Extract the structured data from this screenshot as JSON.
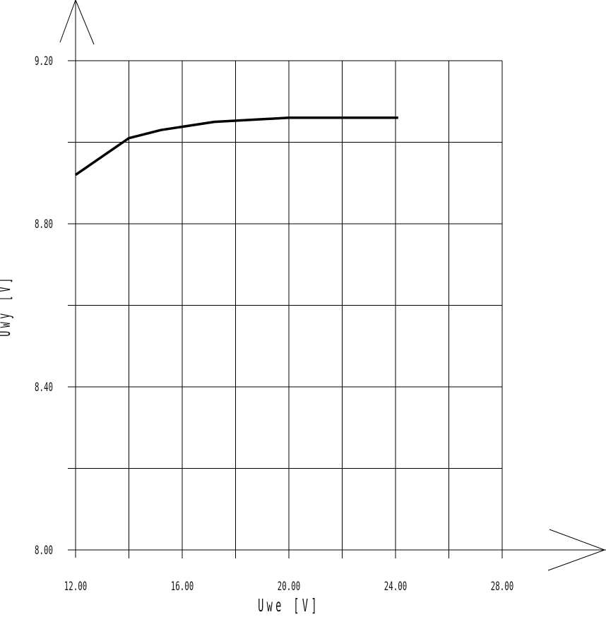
{
  "chart_data": {
    "type": "line",
    "xlabel": "Uwe [V]",
    "ylabel": "Uwy [V]",
    "xlim": [
      12,
      28
    ],
    "ylim": [
      8.0,
      9.2
    ],
    "x_ticks": [
      "12.00",
      "16.00",
      "20.00",
      "24.00",
      "28.00"
    ],
    "y_ticks": [
      "8.00",
      "8.40",
      "8.80",
      "9.20"
    ],
    "grid": true,
    "series": [
      {
        "x": [
          12,
          14,
          15.2,
          17.2,
          20,
          24.1
        ],
        "y": [
          8.92,
          9.01,
          9.03,
          9.05,
          9.06,
          9.06
        ]
      }
    ]
  }
}
